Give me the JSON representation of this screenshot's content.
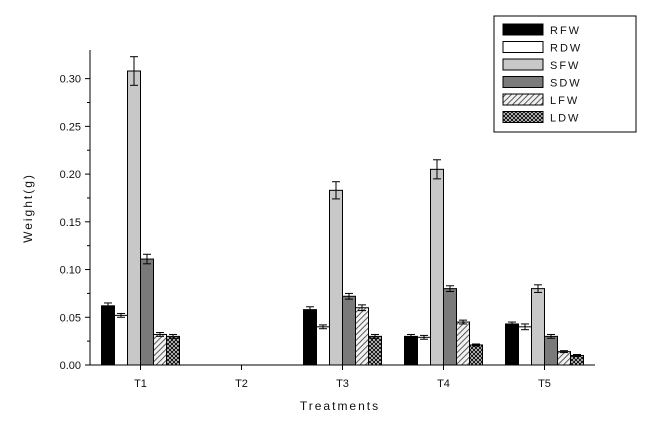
{
  "chart_data": {
    "type": "bar",
    "title": "",
    "xlabel": "Treatments",
    "ylabel": "Weight(g)",
    "ylim": [
      0,
      0.33
    ],
    "yticks": [
      "0.00",
      "0.05",
      "0.10",
      "0.15",
      "0.20",
      "0.25",
      "0.30"
    ],
    "categories": [
      "T1",
      "T2",
      "T3",
      "T4",
      "T5"
    ],
    "legend_position": "top-right",
    "grid": false,
    "series": [
      {
        "name": "RFW",
        "pattern": "solid-black",
        "color": "#000000",
        "values": [
          0.062,
          0,
          0.058,
          0.03,
          0.043
        ],
        "errors": [
          0.003,
          0,
          0.003,
          0.002,
          0.002
        ]
      },
      {
        "name": "RDW",
        "pattern": "white",
        "color": "#ffffff",
        "values": [
          0.052,
          0,
          0.04,
          0.029,
          0.04
        ],
        "errors": [
          0.002,
          0,
          0.002,
          0.002,
          0.003
        ]
      },
      {
        "name": "SFW",
        "pattern": "light-gray",
        "color": "#c8c8c8",
        "values": [
          0.308,
          0,
          0.183,
          0.205,
          0.08
        ],
        "errors": [
          0.015,
          0,
          0.009,
          0.01,
          0.004
        ]
      },
      {
        "name": "SDW",
        "pattern": "dark-gray",
        "color": "#7a7a7a",
        "values": [
          0.111,
          0,
          0.072,
          0.08,
          0.03
        ],
        "errors": [
          0.005,
          0,
          0.003,
          0.003,
          0.002
        ]
      },
      {
        "name": "LFW",
        "pattern": "diagonal-hatch",
        "color": "#dddddd",
        "values": [
          0.032,
          0,
          0.06,
          0.045,
          0.014
        ],
        "errors": [
          0.002,
          0,
          0.003,
          0.002,
          0.001
        ]
      },
      {
        "name": "LDW",
        "pattern": "cross-hatch",
        "color": "#999999",
        "values": [
          0.03,
          0,
          0.03,
          0.021,
          0.01
        ],
        "errors": [
          0.002,
          0,
          0.002,
          0.001,
          0.001
        ]
      }
    ]
  }
}
